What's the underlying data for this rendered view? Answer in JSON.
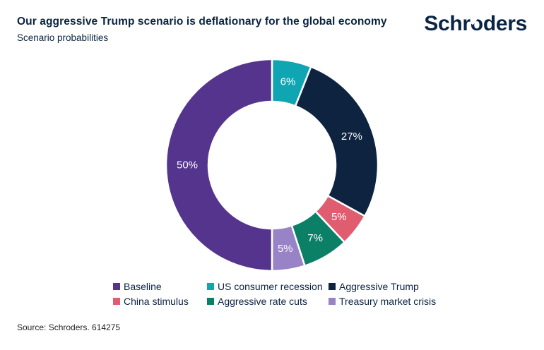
{
  "header": {
    "title": "Our aggressive Trump scenario is deflationary for the global economy",
    "subtitle": "Scenario probabilities",
    "brand": "Schroders",
    "brand_parts": {
      "pre": "Schr",
      "o": "o",
      "post": "ders"
    }
  },
  "chart_data": {
    "type": "pie",
    "variant": "donut",
    "title": "Scenario probabilities",
    "unit": "%",
    "start_angle_deg": 0,
    "direction": "clockwise",
    "inner_radius_ratio": 0.6,
    "label_color": "#ffffff",
    "legend_position": "bottom",
    "segments": [
      {
        "label": "US consumer recession",
        "value": 6,
        "display": "6%",
        "color": "#10A5B2"
      },
      {
        "label": "Aggressive Trump",
        "value": 27,
        "display": "27%",
        "color": "#0D2340"
      },
      {
        "label": "China stimulus",
        "value": 5,
        "display": "5%",
        "color": "#E05D70"
      },
      {
        "label": "Aggressive rate cuts",
        "value": 7,
        "display": "7%",
        "color": "#0C8067"
      },
      {
        "label": "Treasury market crisis",
        "value": 5,
        "display": "5%",
        "color": "#9783C6"
      },
      {
        "label": "Baseline",
        "value": 50,
        "display": "50%",
        "color": "#54348C"
      }
    ],
    "legend_order": [
      "Baseline",
      "US consumer recession",
      "Aggressive Trump",
      "China stimulus",
      "Aggressive rate cuts",
      "Treasury market crisis"
    ]
  },
  "footer": {
    "source": "Source: Schroders. 614275"
  },
  "colors": {
    "text_navy": "#0A2342",
    "background": "#ffffff"
  }
}
